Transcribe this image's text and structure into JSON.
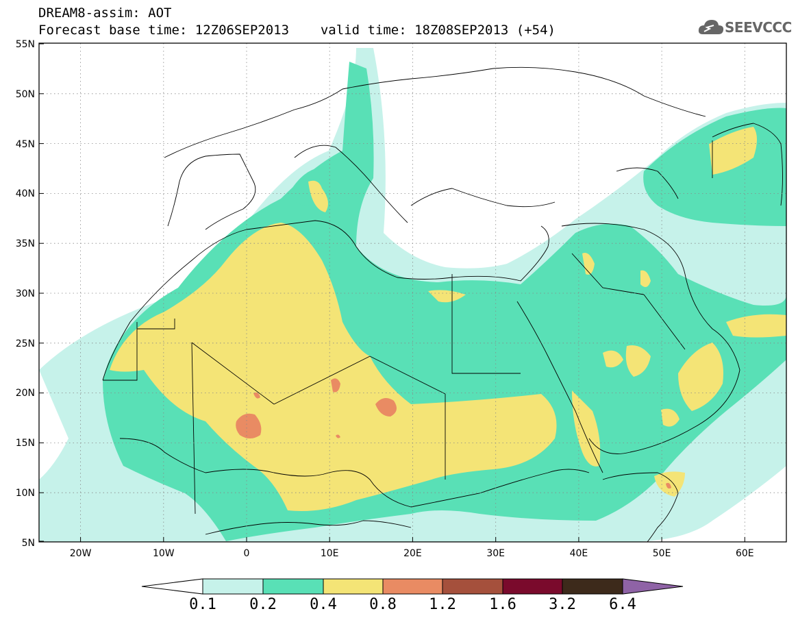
{
  "header": {
    "title_line1": "DREAM8-assim: AOT",
    "base_time_label": "Forecast base time: 12Z06SEP2013",
    "valid_time_label": "valid time: 18Z08SEP2013 (+54)"
  },
  "logo": {
    "text": "SEEVCCC",
    "icon": "cloud-icon"
  },
  "map": {
    "lon_range": [
      -25,
      65
    ],
    "lat_range": [
      5,
      55
    ],
    "lat_ticks": [
      "5N",
      "10N",
      "15N",
      "20N",
      "25N",
      "30N",
      "35N",
      "40N",
      "45N",
      "50N",
      "55N"
    ],
    "lon_ticks": [
      "20W",
      "10W",
      "0",
      "10E",
      "20E",
      "30E",
      "40E",
      "50E",
      "60E"
    ]
  },
  "colorbar": {
    "labels": [
      "0.1",
      "0.2",
      "0.4",
      "0.8",
      "1.2",
      "1.6",
      "3.2",
      "6.4"
    ],
    "colors": [
      "#ffffff",
      "#c6f2ea",
      "#59e0b6",
      "#f4e476",
      "#e98b63",
      "#a5503c",
      "#7a0a2c",
      "#3d2a1b",
      "#8f63a6"
    ]
  }
}
